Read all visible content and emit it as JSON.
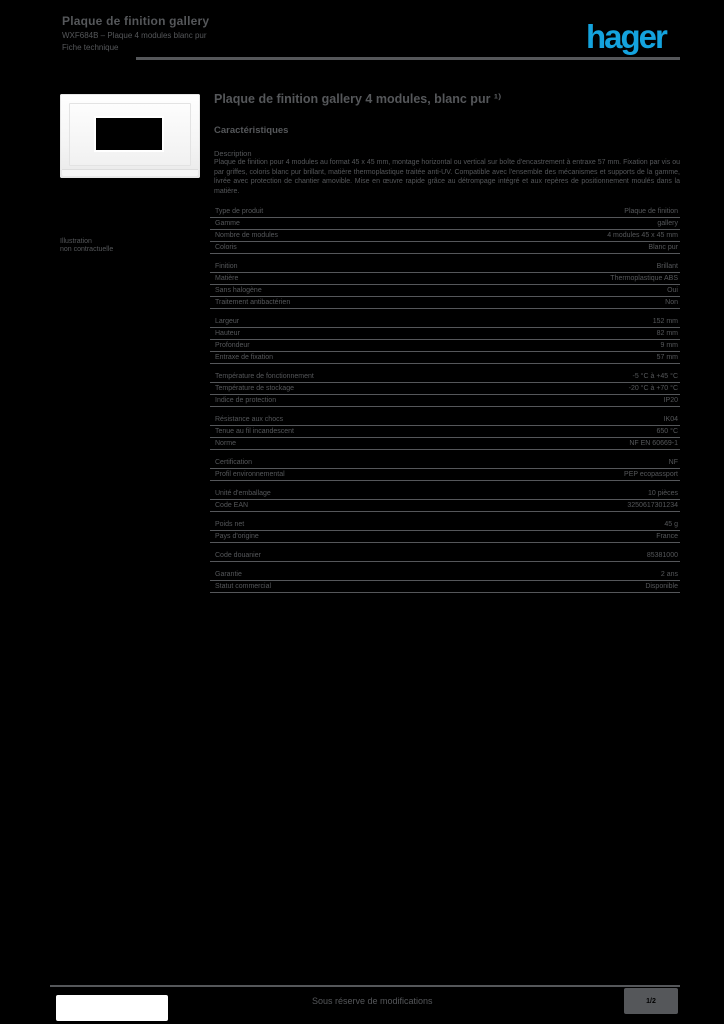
{
  "colors": {
    "ink": "#55575a",
    "brand_blue": "#14a3de",
    "background": "#000000"
  },
  "header": {
    "product_line1": "Plaque de finition gallery",
    "product_line2": "WXF684B – Plaque 4 modules blanc pur",
    "product_line3": "Fiche technique",
    "logo_text": "hager"
  },
  "product_image": {
    "caption_line1": "Illustration",
    "caption_line2": "non contractuelle"
  },
  "main": {
    "title": "Plaque de finition gallery 4 modules, blanc pur ¹⁾",
    "section_heading": "Caractéristiques",
    "description_label": "Description",
    "description": "Plaque de finition pour 4 modules au format 45 x 45 mm, montage horizontal ou vertical sur boîte d'encastrement à entraxe 57 mm. Fixation par vis ou par griffes, coloris blanc pur brillant, matière thermoplastique traitée anti-UV. Compatible avec l'ensemble des mécanismes et supports de la gamme, livrée avec protection de chantier amovible. Mise en œuvre rapide grâce au détrompage intégré et aux repères de positionnement moulés dans la matière."
  },
  "table": {
    "groups": [
      {
        "rows": [
          {
            "label": "Type de produit",
            "value": "Plaque de finition"
          },
          {
            "label": "Gamme",
            "value": "gallery"
          },
          {
            "label": "Nombre de modules",
            "value": "4 modules 45 x 45 mm"
          },
          {
            "label": "Coloris",
            "value": "Blanc pur"
          }
        ]
      },
      {
        "rows": [
          {
            "label": "Finition",
            "value": "Brillant"
          },
          {
            "label": "Matière",
            "value": "Thermoplastique ABS"
          },
          {
            "label": "Sans halogène",
            "value": "Oui"
          },
          {
            "label": "Traitement antibactérien",
            "value": "Non"
          }
        ]
      },
      {
        "rows": [
          {
            "label": "Largeur",
            "value": "152 mm"
          },
          {
            "label": "Hauteur",
            "value": "82 mm"
          },
          {
            "label": "Profondeur",
            "value": "9 mm"
          },
          {
            "label": "Entraxe de fixation",
            "value": "57 mm"
          }
        ]
      },
      {
        "rows": [
          {
            "label": "Température de fonctionnement",
            "value": "-5 °C à +45 °C"
          },
          {
            "label": "Température de stockage",
            "value": "-20 °C à +70 °C"
          },
          {
            "label": "Indice de protection",
            "value": "IP20"
          }
        ]
      },
      {
        "rows": [
          {
            "label": "Résistance aux chocs",
            "value": "IK04"
          },
          {
            "label": "Tenue au fil incandescent",
            "value": "650 °C"
          },
          {
            "label": "Norme",
            "value": "NF EN 60669-1"
          }
        ]
      },
      {
        "rows": [
          {
            "label": "Certification",
            "value": "NF"
          },
          {
            "label": "Profil environnemental",
            "value": "PEP ecopassport"
          }
        ]
      },
      {
        "rows": [
          {
            "label": "Unité d'emballage",
            "value": "10 pièces"
          },
          {
            "label": "Code EAN",
            "value": "3250617301234"
          }
        ]
      },
      {
        "rows": [
          {
            "label": "Poids net",
            "value": "45 g"
          },
          {
            "label": "Pays d'origine",
            "value": "France"
          }
        ]
      },
      {
        "rows": [
          {
            "label": "Code douanier",
            "value": "85381000"
          }
        ]
      },
      {
        "rows": [
          {
            "label": "Garantie",
            "value": "2 ans"
          },
          {
            "label": "Statut commercial",
            "value": "Disponible"
          }
        ]
      }
    ]
  },
  "footer": {
    "note": "Sous réserve de modifications",
    "page_badge": "1/2"
  }
}
